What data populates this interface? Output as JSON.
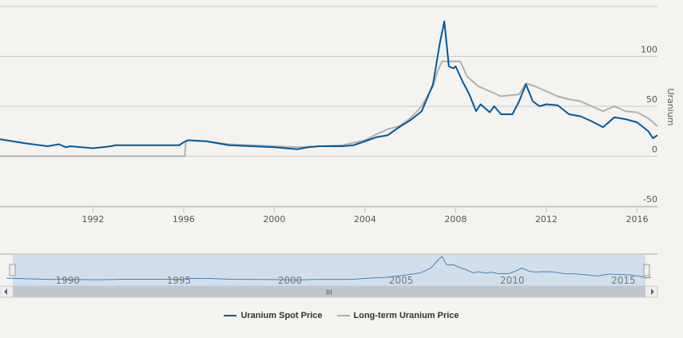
{
  "chart_data": {
    "type": "line",
    "ylabel": "Uranium",
    "xlim": [
      1987.9,
      2016.9
    ],
    "ylim": [
      -50,
      150
    ],
    "yticks": [
      -50,
      0,
      50,
      100
    ],
    "xticks": [
      1992,
      1996,
      2000,
      2004,
      2008,
      2012,
      2016
    ],
    "grid": true,
    "legend": "bottom",
    "navigator_ticks": [
      1990,
      1995,
      2000,
      2005,
      2010,
      2015
    ],
    "series": [
      {
        "name": "Uranium Spot Price",
        "color": "#005a9c",
        "x": [
          1987.9,
          1989,
          1990,
          1990.5,
          1990.8,
          1991,
          1992,
          1992.8,
          1993,
          1994,
          1995,
          1995.8,
          1996,
          1996.2,
          1997,
          1997.5,
          1998,
          1999,
          2000,
          2001,
          2001.5,
          2002,
          2003,
          2003.5,
          2004,
          2004.5,
          2005,
          2005.5,
          2006,
          2006.5,
          2007,
          2007.3,
          2007.5,
          2007.7,
          2007.9,
          2008,
          2008.3,
          2008.6,
          2008.9,
          2009.1,
          2009.5,
          2009.7,
          2010,
          2010.5,
          2010.8,
          2011.1,
          2011.4,
          2011.7,
          2012,
          2012.5,
          2013,
          2013.5,
          2014,
          2014.5,
          2015,
          2015.5,
          2016,
          2016.5,
          2016.7,
          2016.9
        ],
        "y": [
          17,
          13,
          10,
          12,
          9,
          10,
          8,
          10,
          11,
          11,
          11,
          11,
          14,
          16,
          15,
          13,
          11,
          10,
          9,
          7,
          9,
          10,
          10,
          11,
          15,
          19,
          21,
          29,
          36,
          45,
          72,
          113,
          135,
          90,
          88,
          90,
          75,
          62,
          45,
          52,
          44,
          50,
          42,
          42,
          55,
          72,
          55,
          50,
          52,
          51,
          42,
          40,
          35,
          29,
          39,
          37,
          34,
          25,
          18,
          21
        ]
      },
      {
        "name": "Long-term Uranium Price",
        "color": "#b0b0b0",
        "x": [
          1987.9,
          1996.05,
          1996.1,
          1997,
          1998,
          1999,
          2000,
          2001,
          2002,
          2003,
          2004,
          2004.5,
          2005,
          2005.5,
          2006,
          2006.5,
          2007,
          2007.2,
          2007.4,
          2008.2,
          2008.5,
          2009,
          2009.5,
          2010,
          2010.8,
          2011.1,
          2011.5,
          2012,
          2012.5,
          2013,
          2013.5,
          2014,
          2014.5,
          2015,
          2015.5,
          2016,
          2016.5,
          2016.9
        ],
        "y": [
          0,
          0,
          16,
          15,
          12,
          11,
          10,
          9,
          10,
          11,
          16,
          22,
          27,
          30,
          38,
          50,
          70,
          85,
          95,
          95,
          80,
          70,
          65,
          60,
          62,
          73,
          70,
          65,
          60,
          57,
          55,
          50,
          45,
          50,
          45,
          44,
          38,
          30
        ]
      }
    ]
  },
  "navigator": {
    "scrollbar_grip": "III",
    "handle": "II"
  }
}
